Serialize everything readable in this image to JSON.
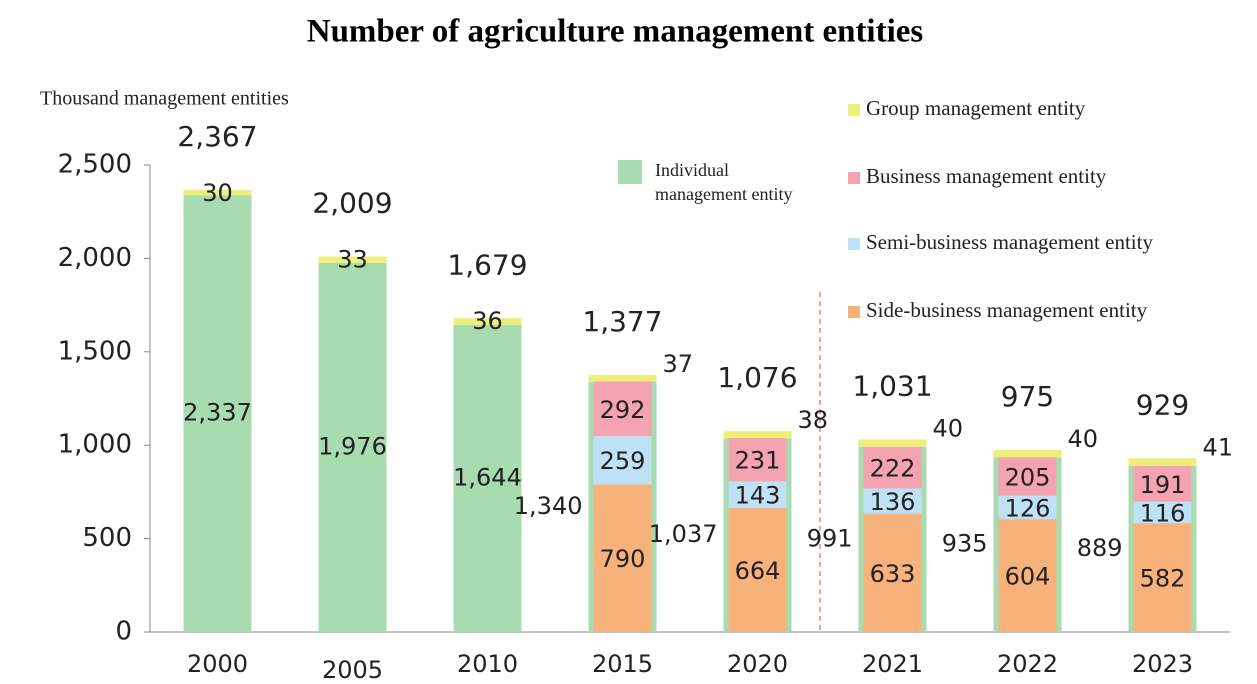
{
  "chart_data": {
    "type": "bar",
    "title": "Number of agriculture management entities",
    "y_label": "Thousand management entities",
    "categories": [
      "2000",
      "2005",
      "2010",
      "2015",
      "2020",
      "2021",
      "2022",
      "2023"
    ],
    "series": [
      {
        "name": "Individual management entity",
        "color": "#a9dbb1",
        "values": [
          2337,
          1976,
          1644,
          1340,
          1037,
          991,
          935,
          889
        ],
        "value_labels": [
          "2,337",
          "1,976",
          "1,644",
          "1,340",
          "1,037",
          "991",
          "935",
          "889"
        ]
      },
      {
        "name": "Group management entity",
        "color": "#eeee7a",
        "values": [
          30,
          33,
          36,
          37,
          38,
          40,
          40,
          41
        ]
      },
      {
        "name": "Side-business management entity",
        "color": "#f7b27c",
        "values": [
          null,
          null,
          null,
          790,
          664,
          633,
          604,
          582
        ]
      },
      {
        "name": "Semi-business management entity",
        "color": "#bfe1f5",
        "values": [
          null,
          null,
          null,
          259,
          143,
          136,
          126,
          116
        ]
      },
      {
        "name": "Business management entity",
        "color": "#f5a3b0",
        "values": [
          null,
          null,
          null,
          292,
          231,
          222,
          205,
          191
        ]
      }
    ],
    "totals": {
      "values": [
        2367,
        2009,
        1679,
        1377,
        1076,
        1031,
        975,
        929
      ],
      "value_labels": [
        "2,367",
        "2,009",
        "1,679",
        "1,377",
        "1,076",
        "1,031",
        "975",
        "929"
      ]
    },
    "ylim": [
      0,
      2500
    ],
    "yticks": [
      0,
      500,
      {
        "value": 1000,
        "label": "1,000"
      },
      {
        "value": 1500,
        "label": "1,500"
      },
      {
        "value": 2000,
        "label": "2,000"
      },
      {
        "value": 2500,
        "label": "2,500"
      }
    ]
  }
}
